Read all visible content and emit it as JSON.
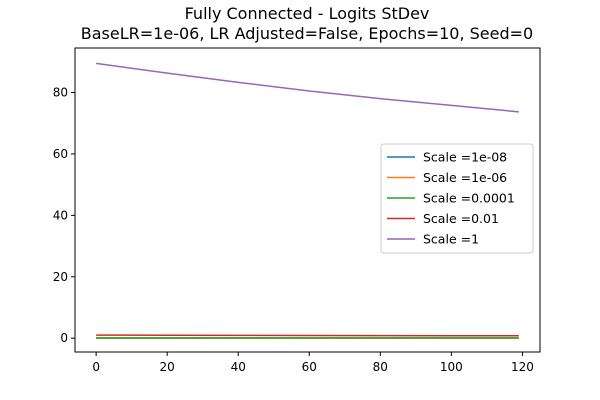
{
  "chart_data": {
    "type": "line",
    "title": "Fully Connected - Logits StDev",
    "subtitle": "BaseLR=1e-06, LR Adjusted=False, Epochs=10, Seed=0",
    "xlabel": "",
    "ylabel": "",
    "xlim": [
      -5.95,
      124.95
    ],
    "ylim": [
      -4.5,
      94.5
    ],
    "xticks": [
      0,
      20,
      40,
      60,
      80,
      100,
      120
    ],
    "yticks": [
      0,
      20,
      40,
      60,
      80
    ],
    "grid": false,
    "legend_position": "center-right",
    "series": [
      {
        "name": "Scale =1e-08",
        "color": "#1f77b4",
        "x": [
          0,
          119
        ],
        "y": [
          0.0,
          0.0
        ]
      },
      {
        "name": "Scale =1e-06",
        "color": "#ff7f0e",
        "x": [
          0,
          119
        ],
        "y": [
          0.0,
          0.0
        ]
      },
      {
        "name": "Scale =0.0001",
        "color": "#2ca02c",
        "x": [
          0,
          119
        ],
        "y": [
          0.1,
          0.1
        ]
      },
      {
        "name": "Scale =0.01",
        "color": "#d62728",
        "x": [
          0,
          20,
          40,
          60,
          80,
          100,
          119
        ],
        "y": [
          1.0,
          0.95,
          0.92,
          0.88,
          0.85,
          0.81,
          0.78
        ]
      },
      {
        "name": "Scale =1",
        "color": "#9467bd",
        "x": [
          0,
          20,
          40,
          60,
          80,
          100,
          119
        ],
        "y": [
          89.5,
          86.3,
          83.3,
          80.5,
          78.0,
          75.8,
          73.7
        ]
      }
    ]
  }
}
